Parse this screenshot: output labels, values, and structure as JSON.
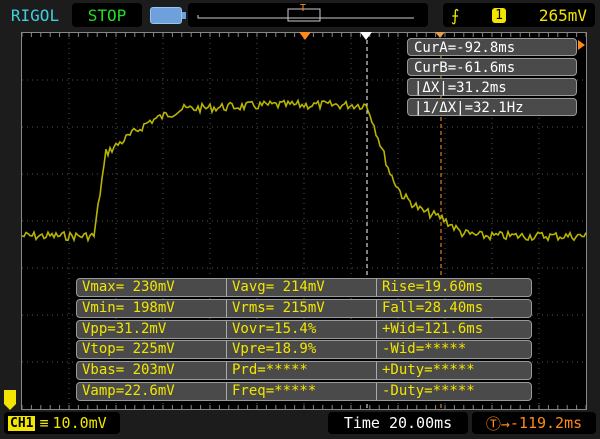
{
  "header": {
    "brand": "RIGOL",
    "status": "STOP",
    "battery_icon": "battery-icon",
    "trigger_edge_icon": "rising-edge-icon",
    "trigger_source": "1",
    "trigger_level": "265mV"
  },
  "cursors": {
    "cur_a": "CurA=-92.8ms",
    "cur_b": "CurB=-61.6ms",
    "delta_x": "|ΔX|=31.2ms",
    "inv_delta_x": "|1/ΔX|=32.1Hz"
  },
  "measurements": [
    [
      "Vmax= 230mV",
      "Vavg= 214mV",
      "Rise=19.60ms"
    ],
    [
      "Vmin= 198mV",
      "Vrms= 215mV",
      "Fall=28.40ms"
    ],
    [
      "Vpp=31.2mV",
      "Vovr=15.4%",
      "+Wid=121.6ms"
    ],
    [
      "Vtop= 225mV",
      "Vpre=18.9%",
      "-Wid=*****"
    ],
    [
      "Vbas= 203mV",
      "Prd=*****",
      "+Duty=*****"
    ],
    [
      "Vamp=22.6mV",
      "Freq=*****",
      "-Duty=*****"
    ]
  ],
  "footer": {
    "channel": "CH1",
    "coupling_icon": "dc-coupling-icon",
    "scale": "10.0mV",
    "timebase": "Time 20.00ms",
    "trigger_offset": "-119.2ms"
  },
  "colors": {
    "trace": "#b8b400",
    "text_yellow": "#f2e600",
    "cursor_b": "#ff9a30",
    "trigger_marker": "#ff8a1a"
  }
}
